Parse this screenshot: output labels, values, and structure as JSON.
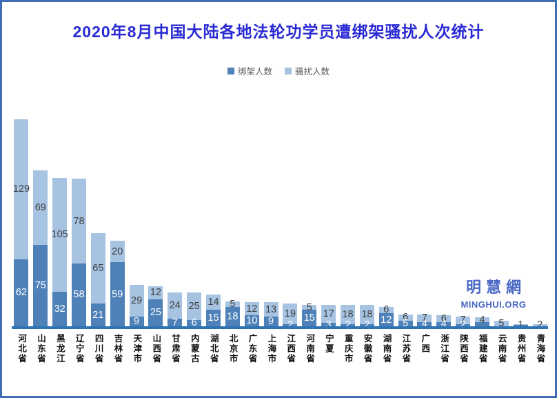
{
  "title": "2020年8月中国大陆各地法轮功学员遭绑架骚扰人次统计",
  "legend": {
    "items": [
      {
        "label": "绑架人数",
        "color": "#4e81b8"
      },
      {
        "label": "骚扰人数",
        "color": "#a6c3e2"
      }
    ]
  },
  "watermark": {
    "chinese": "明慧網",
    "english": "MINGHUI.ORG"
  },
  "colors": {
    "title_text": "#2a2ad4",
    "page_border": "#3e6cb5",
    "axis_line": "#2e74b5",
    "kidnap_bar": "#4e81b8",
    "harass_bar": "#a6c3e2",
    "watermark_text": "#4a68c4"
  },
  "chart_data": {
    "type": "bar",
    "stacked": true,
    "orientation": "vertical",
    "title": "2020年8月中国大陆各地法轮功学员遭绑架骚扰人次统计",
    "legend_position": "top",
    "grid": false,
    "y_axis_visible": false,
    "ylim": [
      0,
      200
    ],
    "categories": [
      "河北省",
      "山东省",
      "黑龙江",
      "辽宁省",
      "四川省",
      "吉林省",
      "天津市",
      "山西省",
      "甘肃省",
      "内蒙古",
      "湖北省",
      "北京市",
      "广东省",
      "上海市",
      "江西省",
      "河南省",
      "宁夏",
      "重庆市",
      "安徽省",
      "湖南省",
      "江苏省",
      "广西",
      "浙江省",
      "陕西省",
      "福建省",
      "云南省",
      "贵州省",
      "青海省"
    ],
    "series": [
      {
        "name": "绑架人数",
        "color": "#4e81b8",
        "values": [
          62,
          75,
          32,
          58,
          21,
          59,
          9,
          25,
          7,
          6,
          15,
          18,
          10,
          9,
          2,
          15,
          3,
          2,
          2,
          12,
          5,
          4,
          4,
          2,
          4,
          0,
          1,
          0
        ],
        "visible_labels": [
          "62",
          "75",
          "32",
          "58",
          "21",
          "59",
          "9",
          "25",
          "7",
          "6",
          "15",
          "18",
          "10",
          "9",
          "2",
          "15",
          "3",
          "2",
          "2",
          "12",
          "5",
          "4",
          "4",
          "2",
          "",
          "",
          "",
          ""
        ]
      },
      {
        "name": "骚扰人数",
        "color": "#a6c3e2",
        "values": [
          129,
          69,
          105,
          78,
          65,
          20,
          29,
          12,
          24,
          25,
          14,
          5,
          12,
          13,
          19,
          5,
          17,
          18,
          18,
          6,
          6,
          7,
          6,
          7,
          4,
          5,
          1,
          2
        ],
        "visible_labels": [
          "129",
          "69",
          "105",
          "78",
          "65",
          "20",
          "29",
          "12",
          "24",
          "25",
          "14",
          "5",
          "12",
          "13",
          "19",
          "5",
          "17",
          "18",
          "18",
          "6",
          "6",
          "7",
          "6",
          "7",
          "4",
          "5",
          "1",
          "2"
        ]
      }
    ]
  }
}
